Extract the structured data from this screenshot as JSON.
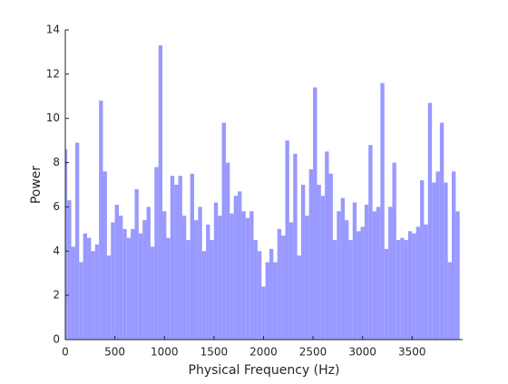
{
  "chart_data": {
    "type": "bar",
    "xlabel": "Physical Frequency (Hz)",
    "ylabel": "Power",
    "color": "#9999ff",
    "x": [
      0,
      40,
      80,
      120,
      160,
      200,
      240,
      280,
      320,
      360,
      400,
      440,
      480,
      520,
      560,
      600,
      640,
      680,
      720,
      760,
      800,
      840,
      880,
      920,
      960,
      1000,
      1040,
      1080,
      1120,
      1160,
      1200,
      1240,
      1280,
      1320,
      1360,
      1400,
      1440,
      1480,
      1520,
      1560,
      1600,
      1640,
      1680,
      1720,
      1760,
      1800,
      1840,
      1880,
      1920,
      1960,
      2000,
      2040,
      2080,
      2120,
      2160,
      2200,
      2240,
      2280,
      2320,
      2360,
      2400,
      2440,
      2480,
      2520,
      2560,
      2600,
      2640,
      2680,
      2720,
      2760,
      2800,
      2840,
      2880,
      2920,
      2960,
      3000,
      3040,
      3080,
      3120,
      3160,
      3200,
      3240,
      3280,
      3320,
      3360,
      3400,
      3440,
      3480,
      3520,
      3560,
      3600,
      3640,
      3680,
      3720,
      3760,
      3800,
      3840,
      3880,
      3920,
      3960
    ],
    "values": [
      8.6,
      6.3,
      4.2,
      8.9,
      3.5,
      4.8,
      4.6,
      4.0,
      4.3,
      10.8,
      7.6,
      3.8,
      5.3,
      6.1,
      5.6,
      5.0,
      4.6,
      5.0,
      6.8,
      4.8,
      5.4,
      6.0,
      4.2,
      7.8,
      13.3,
      5.8,
      4.6,
      7.4,
      7.0,
      7.4,
      5.6,
      4.5,
      7.5,
      5.4,
      6.0,
      4.0,
      5.2,
      4.5,
      6.2,
      5.6,
      9.8,
      8.0,
      5.7,
      6.5,
      6.7,
      5.8,
      5.5,
      5.8,
      4.5,
      4.0,
      2.4,
      3.5,
      4.1,
      3.5,
      5.0,
      4.7,
      9.0,
      5.3,
      8.4,
      3.8,
      7.0,
      5.6,
      7.7,
      11.4,
      7.0,
      6.5,
      8.5,
      7.5,
      4.5,
      5.8,
      6.4,
      5.4,
      4.5,
      6.2,
      4.9,
      5.1,
      6.1,
      8.8,
      5.8,
      6.0,
      11.6,
      4.1,
      6.0,
      8.0,
      4.5,
      4.6,
      4.5,
      4.9,
      4.8,
      5.1,
      7.2,
      5.2,
      10.7,
      7.1,
      7.6,
      9.8,
      7.1,
      3.5,
      7.6,
      5.8
    ],
    "xlim": [
      0,
      4010
    ],
    "xticks": [
      0,
      500,
      1000,
      1500,
      2000,
      2500,
      3000,
      3500
    ],
    "ylim": [
      0,
      14
    ],
    "yticks": [
      0,
      2,
      4,
      6,
      8,
      10,
      12,
      14
    ],
    "grid": false
  }
}
